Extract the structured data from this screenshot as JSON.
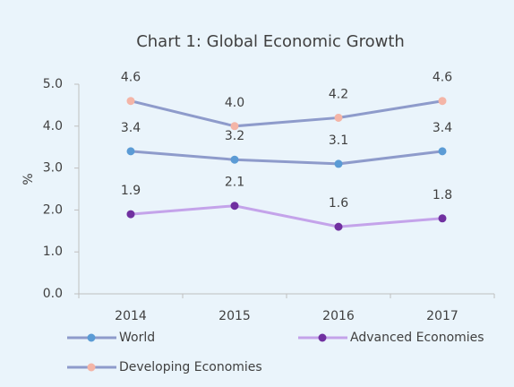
{
  "chart_data": {
    "type": "line",
    "title": "Chart 1: Global Economic Growth",
    "y_label": "%",
    "categories": [
      "2014",
      "2015",
      "2016",
      "2017"
    ],
    "series": [
      {
        "name": "World",
        "color": "#8e9bcb",
        "marker_color": "#5b9bd5",
        "values": [
          3.4,
          3.2,
          3.1,
          3.4
        ],
        "value_labels": [
          "3.4",
          "3.2",
          "3.1",
          "3.4"
        ]
      },
      {
        "name": "Advanced Economies",
        "color": "#c4a3ea",
        "marker_color": "#7030a0",
        "values": [
          1.9,
          2.1,
          1.6,
          1.8
        ],
        "value_labels": [
          "1.9",
          "2.1",
          "1.6",
          "1.8"
        ]
      },
      {
        "name": "Developing Economies",
        "color": "#8e9bcb",
        "marker_color": "#f4b5a7",
        "values": [
          4.6,
          4.0,
          4.2,
          4.6
        ],
        "value_labels": [
          "4.6",
          "4.0",
          "4.2",
          "4.6"
        ]
      }
    ],
    "ylim": [
      0,
      5
    ],
    "yticks": [
      {
        "value": 0,
        "label": "0.0"
      },
      {
        "value": 1,
        "label": "1.0"
      },
      {
        "value": 2,
        "label": "2.0"
      },
      {
        "value": 3,
        "label": "3.0"
      },
      {
        "value": 4,
        "label": "4.0"
      },
      {
        "value": 5,
        "label": "5.0"
      }
    ],
    "grid": false,
    "legend": "bottom"
  }
}
